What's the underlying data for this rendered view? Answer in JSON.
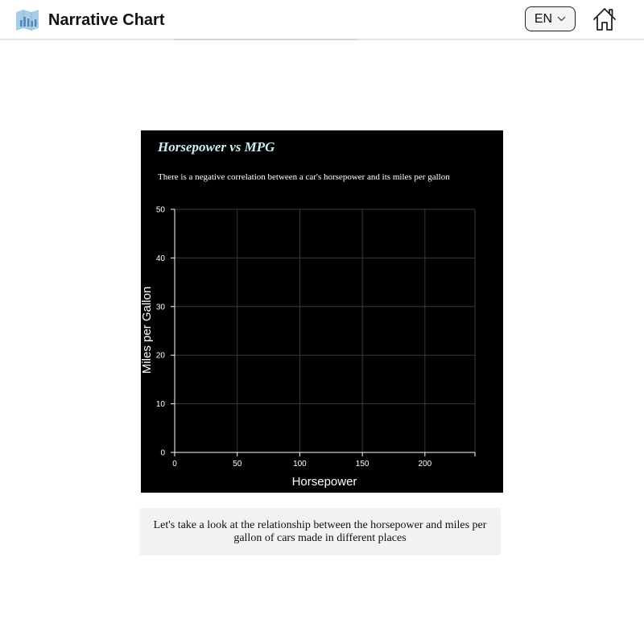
{
  "header": {
    "app_title": "Narrative Chart",
    "language": "EN",
    "logo_icon": "bar-chart-logo-icon",
    "home_icon": "home-icon",
    "chevron_icon": "chevron-down-icon"
  },
  "chart_data": {
    "type": "scatter",
    "title": "Horsepower vs MPG",
    "subtitle": "There is a negative correlation between a car's horsepower and its miles per gallon",
    "xlabel": "Horsepower",
    "ylabel": "Miles per Gallon",
    "xlim": [
      0,
      240
    ],
    "ylim": [
      0,
      50
    ],
    "x_ticks": [
      0,
      50,
      100,
      150,
      200
    ],
    "y_ticks": [
      0,
      10,
      20,
      30,
      40,
      50
    ],
    "grid": true,
    "series": [],
    "colors": {
      "background": "#000000",
      "grid": "#3a3a3a",
      "axis": "#ffffff",
      "title": "#cfeef2"
    }
  },
  "caption": {
    "text": "Let's take a look at the relationship between the horsepower and miles per gallon of cars made in different places"
  }
}
